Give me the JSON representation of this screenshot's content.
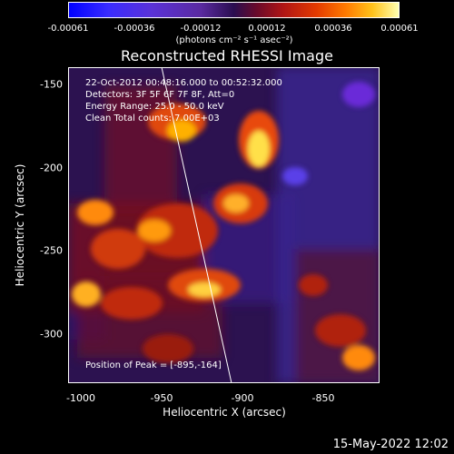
{
  "colorbar": {
    "ticks": [
      "-0.00061",
      "-0.00036",
      "-0.00012",
      "0.00012",
      "0.00036",
      "0.00061"
    ],
    "units": "(photons cm⁻² s⁻¹ asec⁻²)"
  },
  "title": "Reconstructed RHESSI Image",
  "info": {
    "time": "22-Oct-2012 00:48:16.000 to 00:52:32.000",
    "detectors": "Detectors: 3F 5F 6F 7F 8F, Att=0",
    "energy": "Energy Range: 25.0 - 50.0 keV",
    "method": "Clean    Total counts: 7.00E+03",
    "peak": "Position of Peak = [-895,-164]"
  },
  "axes": {
    "x_title": "Heliocentric X (arcsec)",
    "y_title": "Heliocentric Y (arcsec)",
    "x_ticks": [
      "-1000",
      "-950",
      "-900",
      "-850"
    ],
    "y_ticks": [
      "-150",
      "-200",
      "-250",
      "-300"
    ]
  },
  "footer": {
    "date": "15-May-2022 12:02"
  }
}
